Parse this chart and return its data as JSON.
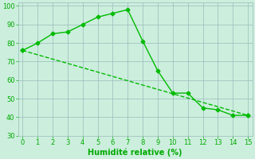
{
  "line1_x": [
    0,
    1,
    2,
    3,
    4,
    5,
    6,
    7,
    8,
    9,
    10,
    11,
    12,
    13,
    14,
    15
  ],
  "line1_y": [
    76,
    80,
    85,
    86,
    90,
    94,
    96,
    98,
    81,
    65,
    53,
    53,
    45,
    44,
    41,
    41
  ],
  "line2_x": [
    0,
    15
  ],
  "line2_y": [
    76,
    41
  ],
  "line_color": "#00bb00",
  "bg_color": "#cceedd",
  "grid_color": "#99bbbb",
  "xlabel": "Humidité relative (%)",
  "xlim": [
    -0.3,
    15.3
  ],
  "ylim": [
    30,
    102
  ],
  "xticks": [
    0,
    1,
    2,
    3,
    4,
    5,
    6,
    7,
    8,
    9,
    10,
    11,
    12,
    13,
    14,
    15
  ],
  "yticks": [
    30,
    40,
    50,
    60,
    70,
    80,
    90,
    100
  ],
  "marker": "D",
  "markersize": 2.5,
  "linewidth": 1.0,
  "xlabel_color": "#00aa00",
  "tick_color": "#00aa00",
  "label_fontsize": 6,
  "xlabel_fontsize": 7
}
